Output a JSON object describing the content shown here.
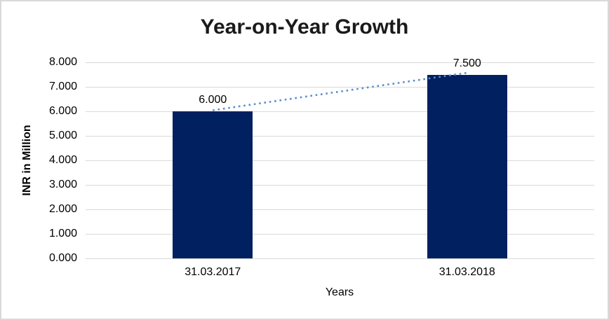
{
  "chart_data": {
    "type": "bar",
    "title": "Year-on-Year Growth",
    "categories": [
      "31.03.2017",
      "31.03.2018"
    ],
    "values": [
      6.0,
      7.5
    ],
    "value_labels": [
      "6.000",
      "7.500"
    ],
    "xlabel": "Years",
    "ylabel": "INR in Million",
    "ylim": [
      0,
      8
    ],
    "ytick_labels": [
      "0.000",
      "1.000",
      "2.000",
      "3.000",
      "4.000",
      "5.000",
      "6.000",
      "7.000",
      "8.000"
    ],
    "grid": true,
    "legend": "none",
    "colors": {
      "bar": "#002060",
      "gridline": "#d9d9d9",
      "trendline": "#5b8bd0",
      "text": "#000000",
      "title_text": "#1a1a1a",
      "border": "#d9d9d9",
      "background": "#ffffff"
    },
    "trendline": {
      "style": "dotted",
      "from_value": 6.0,
      "to_value": 7.5
    }
  }
}
